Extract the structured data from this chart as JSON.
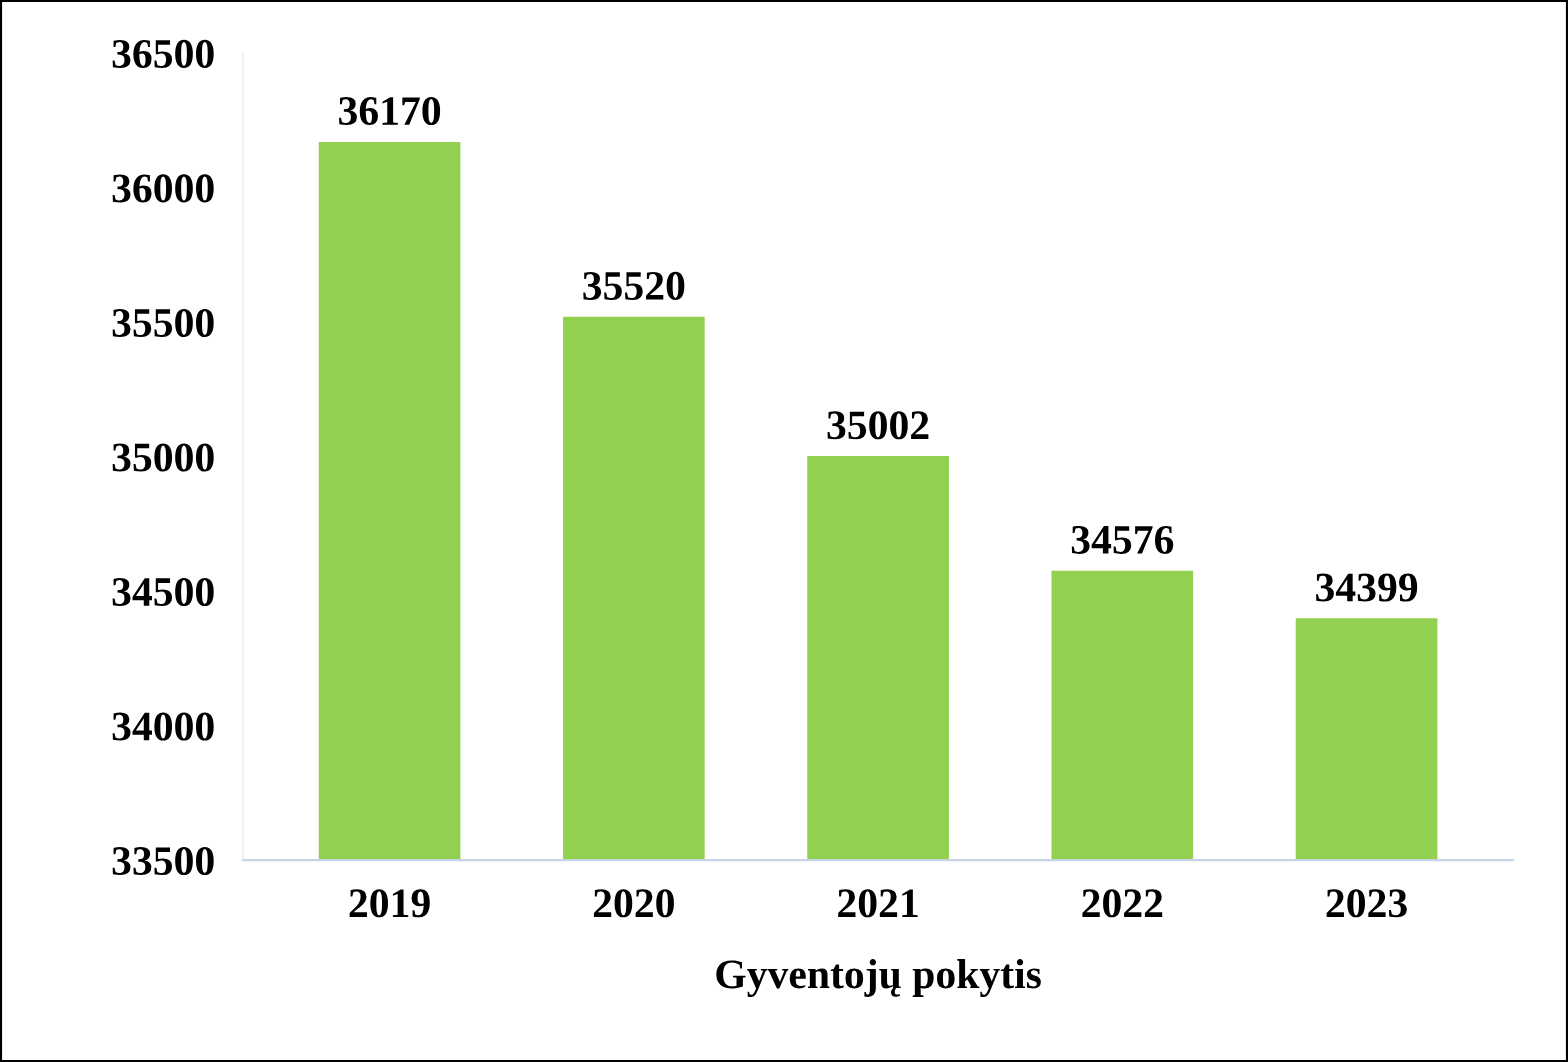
{
  "chart_data": {
    "type": "bar",
    "xlabel": "Gyventojų pokytis",
    "categories": [
      "2019",
      "2020",
      "2021",
      "2022",
      "2023"
    ],
    "values": [
      36170,
      35520,
      35002,
      34576,
      34399
    ],
    "color": "#92d050",
    "ylim": [
      33500,
      36500
    ],
    "yticks": [
      33500,
      34000,
      34500,
      35000,
      35500,
      36000,
      36500
    ],
    "data_labels": true,
    "grid": false,
    "legend": false
  }
}
